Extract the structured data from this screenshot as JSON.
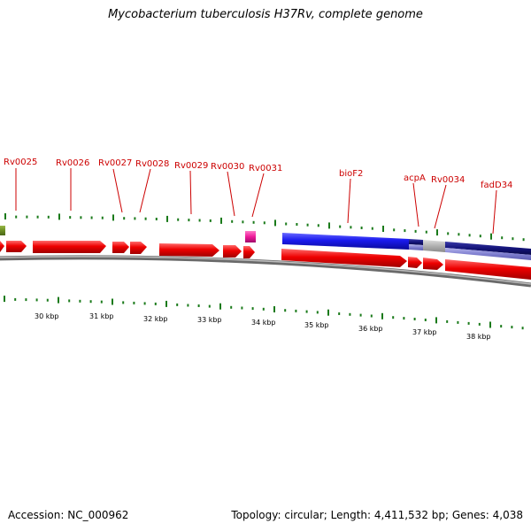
{
  "title": "Mycobacterium tuberculosis H37Rv, complete genome",
  "footer": {
    "accession": "Accession: NC_000962",
    "topology": "Topology: circular; Length: 4,411,532 bp; Genes: 4,038"
  },
  "gene_labels": [
    "Rv0025",
    "Rv0026",
    "Rv0027",
    "Rv0028",
    "Rv0029",
    "Rv0030",
    "Rv0031",
    "bioF2",
    "acpA",
    "Rv0034",
    "fadD34"
  ],
  "scale_labels": [
    "30 kbp",
    "31 kbp",
    "32 kbp",
    "33 kbp",
    "34 kbp",
    "35 kbp",
    "36 kbp",
    "37 kbp",
    "38 kbp"
  ],
  "colors": {
    "gene_label": "#cc0000",
    "cds_forward": "#ee0000",
    "feature_blue": "#1a1aee",
    "feature_navy": "#14147a",
    "feature_lavender": "#8080d0",
    "feature_gray": "#b0b0b0",
    "feature_magenta": "#ee1a9a",
    "feature_olive": "#6b8e23",
    "ticks": "#1a7a1a",
    "backbone": "#888888"
  }
}
